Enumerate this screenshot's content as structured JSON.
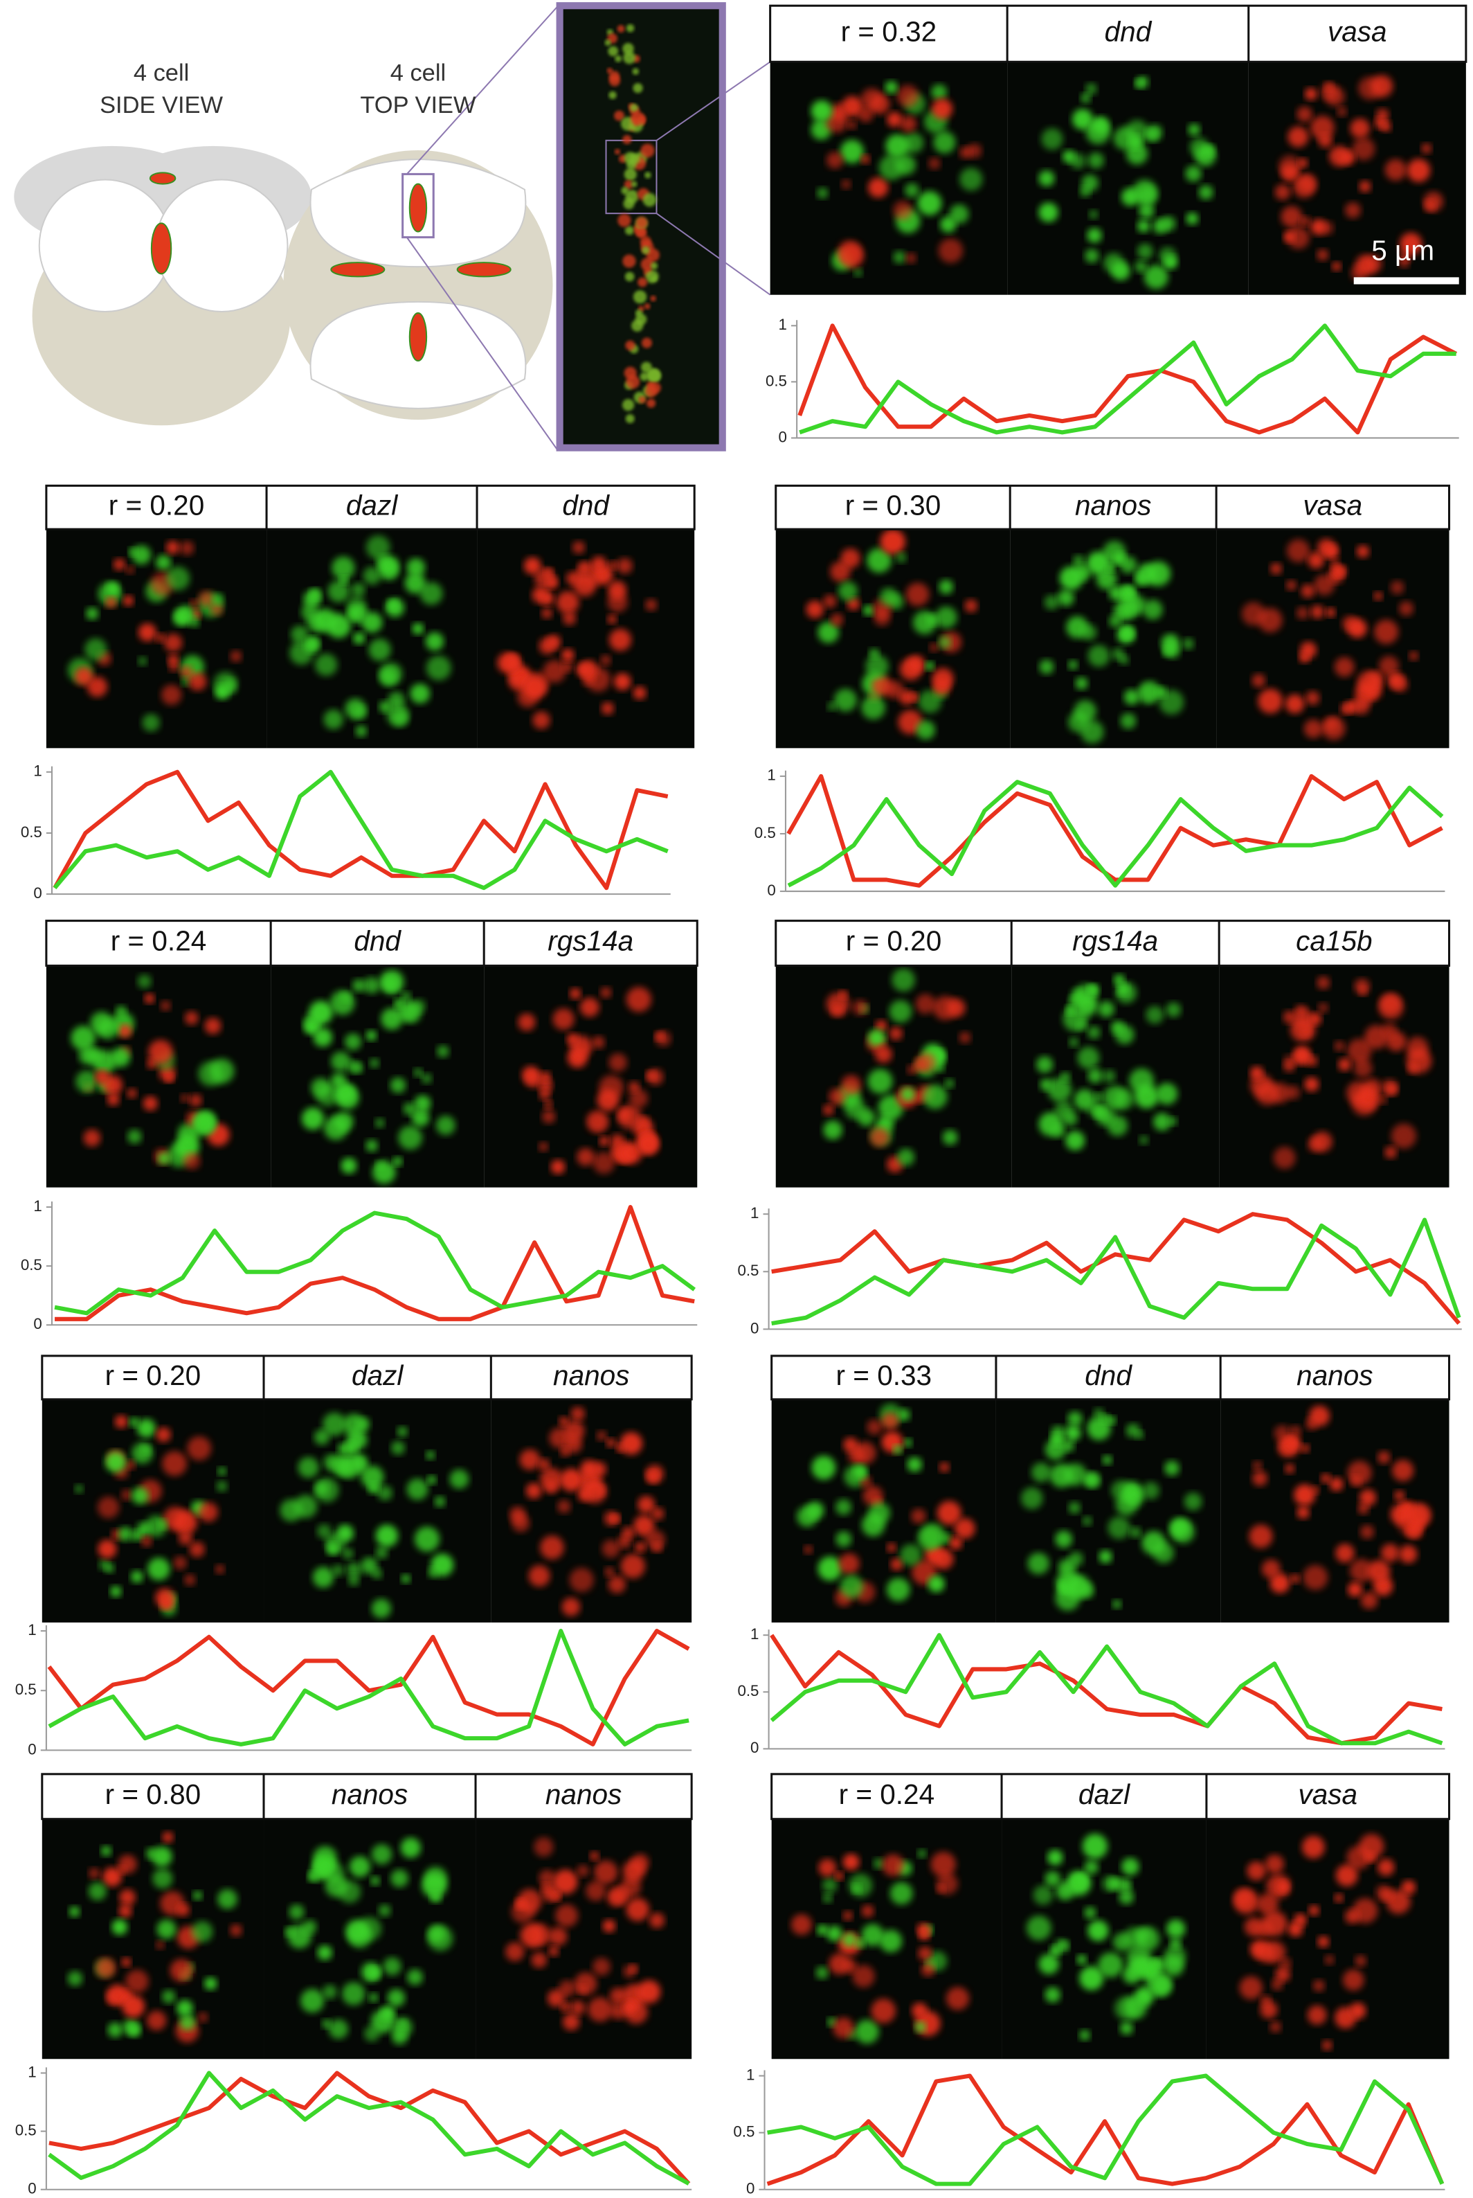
{
  "diagram": {
    "side": {
      "stage": "4 cell",
      "view": "SIDE VIEW"
    },
    "top": {
      "stage": "4 cell",
      "view": "TOP VIEW"
    }
  },
  "chart_data": [
    {
      "type": "line",
      "title": "r = 0.32",
      "channels": [
        "dnd",
        "vasa"
      ],
      "scale_bar": "5 µm",
      "ylim": [
        0,
        1
      ],
      "yticks": [
        0,
        0.5,
        1
      ],
      "series": [
        {
          "color": "#e8321e",
          "values": [
            0.2,
            1.0,
            0.45,
            0.1,
            0.1,
            0.35,
            0.15,
            0.2,
            0.15,
            0.2,
            0.55,
            0.6,
            0.5,
            0.15,
            0.05,
            0.15,
            0.35,
            0.05,
            0.7,
            0.9,
            0.75
          ]
        },
        {
          "color": "#3cd62a",
          "values": [
            0.05,
            0.15,
            0.1,
            0.5,
            0.3,
            0.15,
            0.05,
            0.1,
            0.05,
            0.1,
            0.35,
            0.6,
            0.85,
            0.3,
            0.55,
            0.7,
            1.0,
            0.6,
            0.55,
            0.75,
            0.75
          ]
        }
      ]
    },
    {
      "type": "line",
      "title": "r = 0.20",
      "channels": [
        "dazl",
        "dnd"
      ],
      "ylim": [
        0,
        1
      ],
      "yticks": [
        0,
        0.5,
        1
      ],
      "series": [
        {
          "color": "#e8321e",
          "values": [
            0.05,
            0.5,
            0.7,
            0.9,
            1.0,
            0.6,
            0.75,
            0.4,
            0.2,
            0.15,
            0.3,
            0.15,
            0.15,
            0.2,
            0.6,
            0.35,
            0.9,
            0.4,
            0.05,
            0.85,
            0.8
          ]
        },
        {
          "color": "#3cd62a",
          "values": [
            0.05,
            0.35,
            0.4,
            0.3,
            0.35,
            0.2,
            0.3,
            0.15,
            0.8,
            1.0,
            0.6,
            0.2,
            0.15,
            0.15,
            0.05,
            0.2,
            0.6,
            0.45,
            0.35,
            0.45,
            0.35
          ]
        }
      ]
    },
    {
      "type": "line",
      "title": "r = 0.30",
      "channels": [
        "nanos",
        "vasa"
      ],
      "ylim": [
        0,
        1
      ],
      "yticks": [
        0,
        0.5,
        1
      ],
      "series": [
        {
          "color": "#e8321e",
          "values": [
            0.5,
            1.0,
            0.1,
            0.1,
            0.05,
            0.3,
            0.6,
            0.85,
            0.75,
            0.3,
            0.1,
            0.1,
            0.55,
            0.4,
            0.45,
            0.4,
            1.0,
            0.8,
            0.95,
            0.4,
            0.55
          ]
        },
        {
          "color": "#3cd62a",
          "values": [
            0.05,
            0.2,
            0.4,
            0.8,
            0.4,
            0.15,
            0.7,
            0.95,
            0.85,
            0.4,
            0.05,
            0.4,
            0.8,
            0.55,
            0.35,
            0.4,
            0.4,
            0.45,
            0.55,
            0.9,
            0.65
          ]
        }
      ]
    },
    {
      "type": "line",
      "title": "r = 0.24",
      "channels": [
        "dnd",
        "rgs14a"
      ],
      "ylim": [
        0,
        1
      ],
      "yticks": [
        0,
        0.5,
        1
      ],
      "series": [
        {
          "color": "#e8321e",
          "values": [
            0.05,
            0.05,
            0.25,
            0.3,
            0.2,
            0.15,
            0.1,
            0.15,
            0.35,
            0.4,
            0.3,
            0.15,
            0.05,
            0.05,
            0.15,
            0.7,
            0.2,
            0.25,
            1.0,
            0.25,
            0.2
          ]
        },
        {
          "color": "#3cd62a",
          "values": [
            0.15,
            0.1,
            0.3,
            0.25,
            0.4,
            0.8,
            0.45,
            0.45,
            0.55,
            0.8,
            0.95,
            0.9,
            0.75,
            0.3,
            0.15,
            0.2,
            0.25,
            0.45,
            0.4,
            0.5,
            0.3
          ]
        }
      ]
    },
    {
      "type": "line",
      "title": "r = 0.20",
      "channels": [
        "rgs14a",
        "ca15b"
      ],
      "ylim": [
        0,
        1
      ],
      "yticks": [
        0,
        0.5,
        1
      ],
      "series": [
        {
          "color": "#e8321e",
          "values": [
            0.5,
            0.55,
            0.6,
            0.85,
            0.5,
            0.6,
            0.55,
            0.6,
            0.75,
            0.5,
            0.65,
            0.6,
            0.95,
            0.85,
            1.0,
            0.95,
            0.75,
            0.5,
            0.6,
            0.4,
            0.05
          ]
        },
        {
          "color": "#3cd62a",
          "values": [
            0.05,
            0.1,
            0.25,
            0.45,
            0.3,
            0.6,
            0.55,
            0.5,
            0.6,
            0.4,
            0.8,
            0.2,
            0.1,
            0.4,
            0.35,
            0.35,
            0.9,
            0.7,
            0.3,
            0.95,
            0.1
          ]
        }
      ]
    },
    {
      "type": "line",
      "title": "r = 0.20",
      "channels": [
        "dazl",
        "nanos"
      ],
      "ylim": [
        0,
        1
      ],
      "yticks": [
        0,
        0.5,
        1
      ],
      "series": [
        {
          "color": "#e8321e",
          "values": [
            0.7,
            0.35,
            0.55,
            0.6,
            0.75,
            0.95,
            0.7,
            0.5,
            0.75,
            0.75,
            0.5,
            0.55,
            0.95,
            0.4,
            0.3,
            0.3,
            0.2,
            0.05,
            0.6,
            1.0,
            0.85
          ]
        },
        {
          "color": "#3cd62a",
          "values": [
            0.2,
            0.35,
            0.45,
            0.1,
            0.2,
            0.1,
            0.05,
            0.1,
            0.5,
            0.35,
            0.45,
            0.6,
            0.2,
            0.1,
            0.1,
            0.2,
            1.0,
            0.35,
            0.05,
            0.2,
            0.25
          ]
        }
      ]
    },
    {
      "type": "line",
      "title": "r = 0.33",
      "channels": [
        "dnd",
        "nanos"
      ],
      "ylim": [
        0,
        1
      ],
      "yticks": [
        0,
        0.5,
        1
      ],
      "series": [
        {
          "color": "#e8321e",
          "values": [
            1.0,
            0.55,
            0.85,
            0.65,
            0.3,
            0.2,
            0.7,
            0.7,
            0.75,
            0.6,
            0.35,
            0.3,
            0.3,
            0.2,
            0.55,
            0.4,
            0.1,
            0.05,
            0.1,
            0.4,
            0.35
          ]
        },
        {
          "color": "#3cd62a",
          "values": [
            0.25,
            0.5,
            0.6,
            0.6,
            0.5,
            1.0,
            0.45,
            0.5,
            0.85,
            0.5,
            0.9,
            0.5,
            0.4,
            0.2,
            0.55,
            0.75,
            0.2,
            0.05,
            0.05,
            0.15,
            0.05
          ]
        }
      ]
    },
    {
      "type": "line",
      "title": "r = 0.80",
      "channels": [
        "nanos",
        "nanos"
      ],
      "ylim": [
        0,
        1
      ],
      "yticks": [
        0,
        0.5,
        1
      ],
      "series": [
        {
          "color": "#e8321e",
          "values": [
            0.4,
            0.35,
            0.4,
            0.5,
            0.6,
            0.7,
            0.95,
            0.8,
            0.7,
            1.0,
            0.8,
            0.7,
            0.85,
            0.75,
            0.4,
            0.5,
            0.3,
            0.4,
            0.5,
            0.35,
            0.05
          ]
        },
        {
          "color": "#3cd62a",
          "values": [
            0.3,
            0.1,
            0.2,
            0.35,
            0.55,
            1.0,
            0.7,
            0.85,
            0.6,
            0.8,
            0.7,
            0.75,
            0.6,
            0.3,
            0.35,
            0.2,
            0.5,
            0.3,
            0.4,
            0.2,
            0.05
          ]
        }
      ]
    },
    {
      "type": "line",
      "title": "r = 0.24",
      "channels": [
        "dazl",
        "vasa"
      ],
      "ylim": [
        0,
        1
      ],
      "yticks": [
        0,
        0.5,
        1
      ],
      "series": [
        {
          "color": "#e8321e",
          "values": [
            0.05,
            0.15,
            0.3,
            0.6,
            0.3,
            0.95,
            1.0,
            0.55,
            0.35,
            0.15,
            0.6,
            0.1,
            0.05,
            0.1,
            0.2,
            0.4,
            0.75,
            0.3,
            0.15,
            0.75,
            0.05
          ]
        },
        {
          "color": "#3cd62a",
          "values": [
            0.5,
            0.55,
            0.45,
            0.55,
            0.2,
            0.05,
            0.05,
            0.4,
            0.55,
            0.2,
            0.1,
            0.6,
            0.95,
            1.0,
            0.75,
            0.5,
            0.4,
            0.35,
            0.95,
            0.7,
            0.05
          ]
        }
      ]
    }
  ]
}
